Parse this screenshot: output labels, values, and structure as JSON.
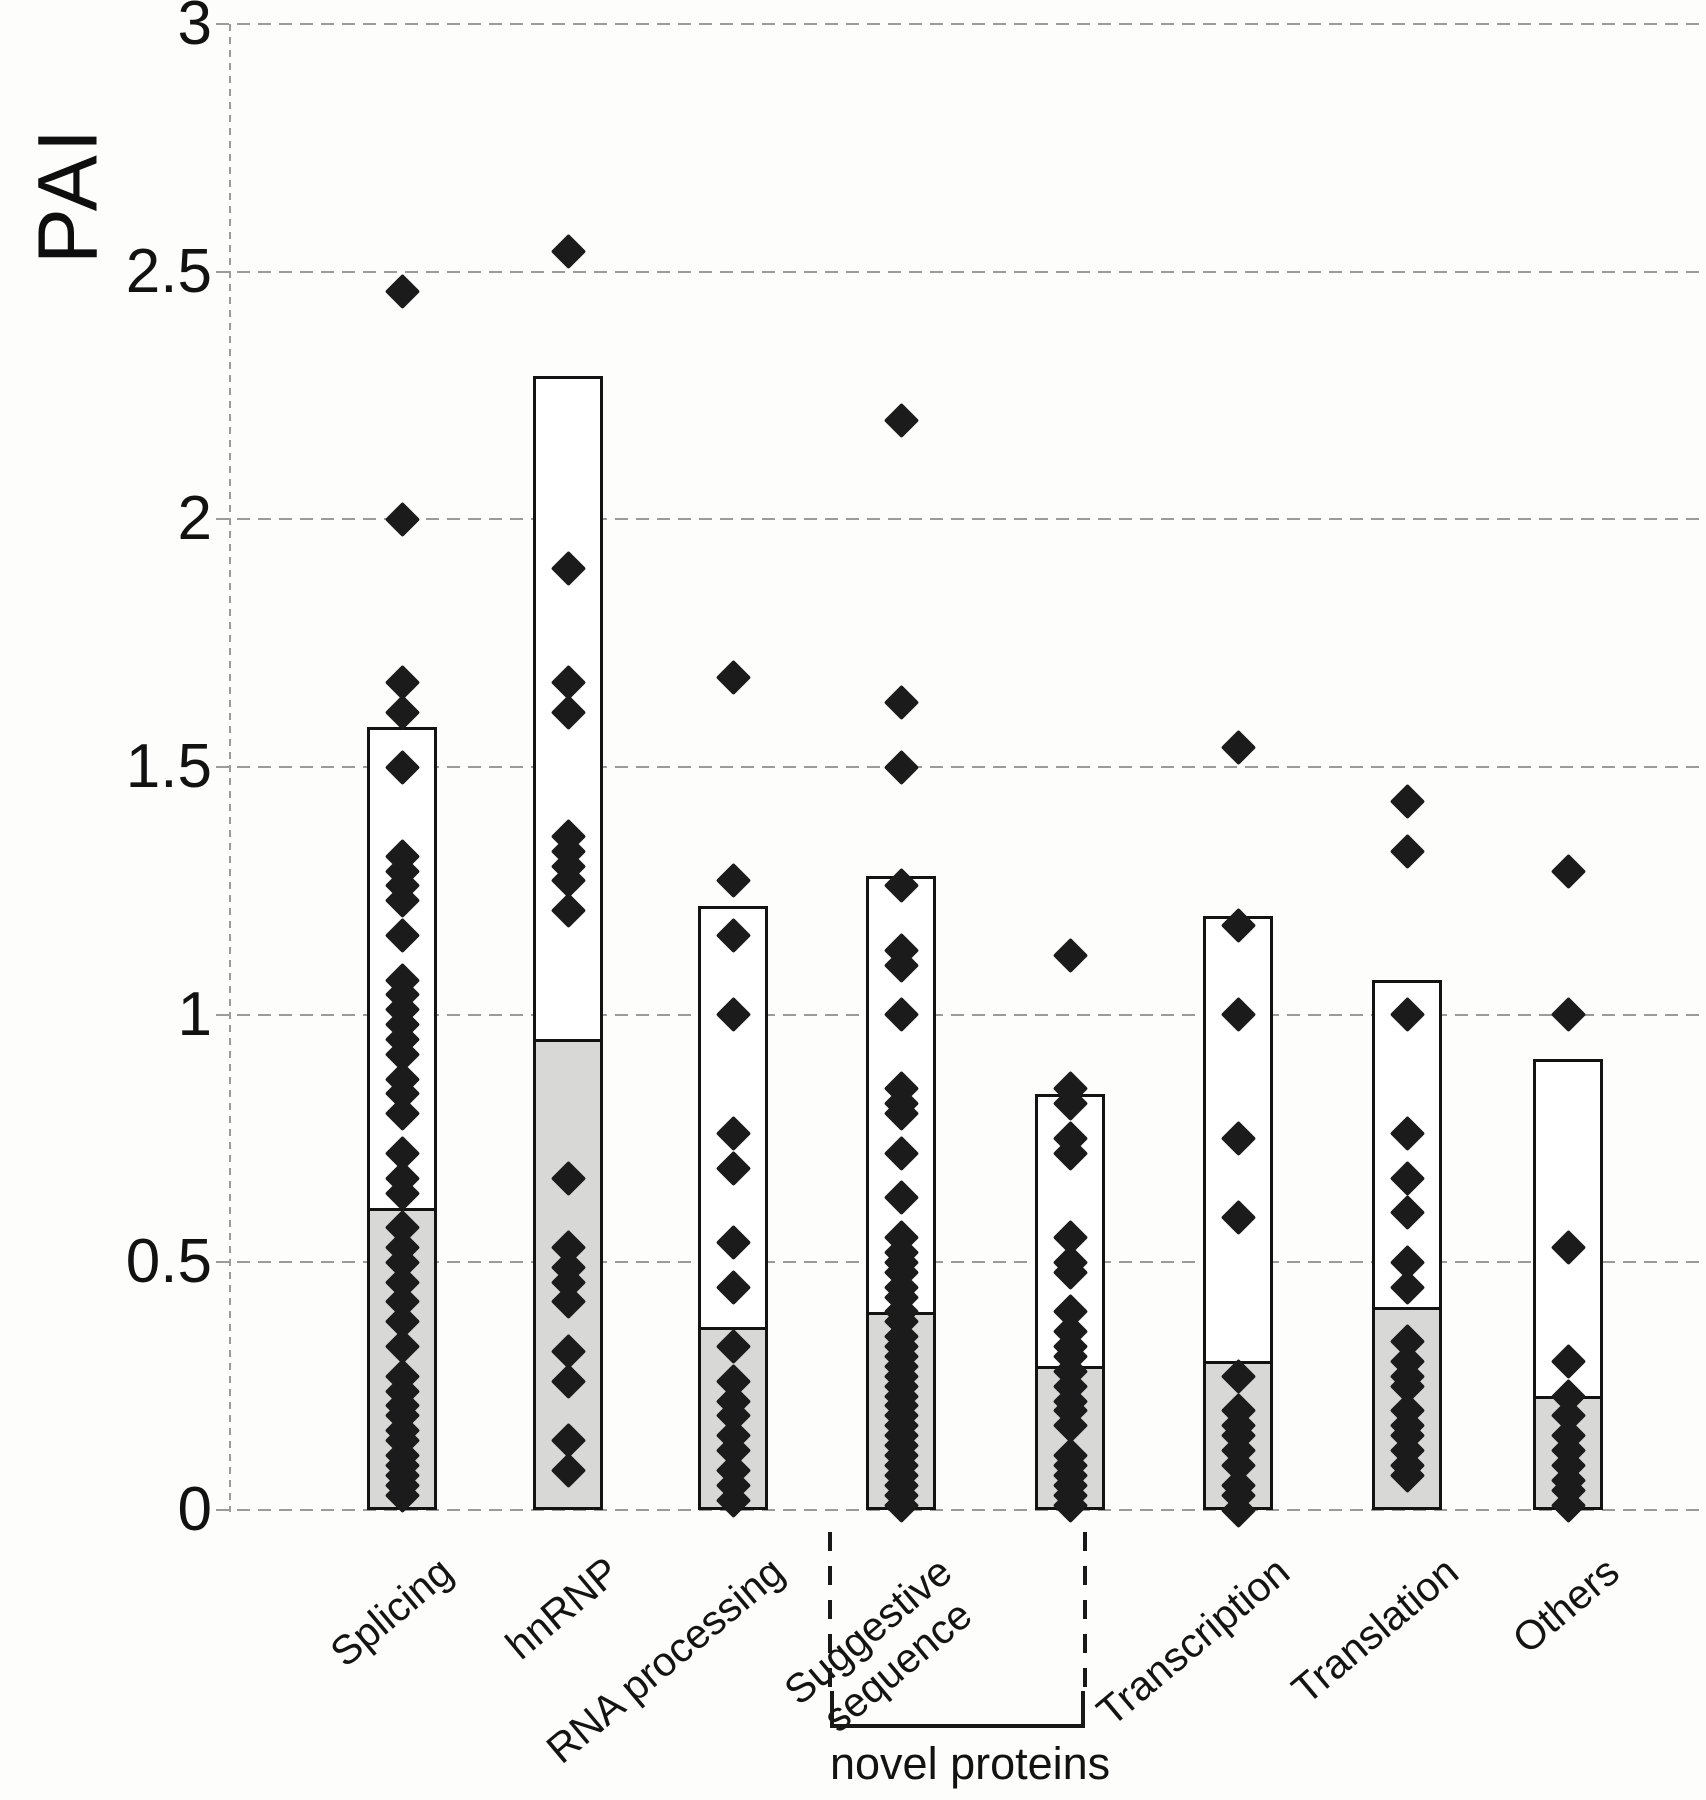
{
  "figure": {
    "y_axis_title": "PAI",
    "bracket_label": "novel proteins"
  },
  "colors": {
    "diamond": "#1b1b1b",
    "bar_upper_fill": "#ffffff",
    "bar_lower_fill": "#d8d8d6",
    "bar_border": "#131313",
    "gridline": "#9b9b9b"
  },
  "chart_data": {
    "type": "scatter",
    "marker": "diamond",
    "title": "",
    "xlabel": "",
    "ylabel": "PAI",
    "ylim": [
      0,
      3
    ],
    "yticks": [
      0,
      0.5,
      1,
      1.5,
      2,
      2.5,
      3
    ],
    "ytick_labels": [
      "0",
      "0.5",
      "1",
      "1.5",
      "2",
      "2.5",
      "3"
    ],
    "grid": "horizontal-dashed",
    "bar_meaning": "white segment top and gray segment top per category",
    "categories": [
      {
        "label": "Splicing",
        "bar_top": 1.58,
        "gray_top": 0.61,
        "points": [
          2.46,
          2.0,
          1.67,
          1.61,
          1.5,
          1.32,
          1.29,
          1.26,
          1.23,
          1.16,
          1.07,
          1.04,
          1.01,
          0.98,
          0.95,
          0.92,
          0.87,
          0.84,
          0.8,
          0.72,
          0.67,
          0.64,
          0.57,
          0.53,
          0.5,
          0.46,
          0.42,
          0.38,
          0.33,
          0.27,
          0.24,
          0.21,
          0.19,
          0.16,
          0.14,
          0.11,
          0.09,
          0.07,
          0.05,
          0.03
        ]
      },
      {
        "label": "hnRNP",
        "bar_top": 2.29,
        "gray_top": 0.95,
        "points": [
          2.54,
          1.9,
          1.67,
          1.61,
          1.36,
          1.33,
          1.3,
          1.27,
          1.21,
          0.67,
          0.53,
          0.49,
          0.46,
          0.42,
          0.32,
          0.26,
          0.14,
          0.08
        ]
      },
      {
        "label": "RNA processing",
        "bar_top": 1.22,
        "gray_top": 0.37,
        "points": [
          1.68,
          1.27,
          1.16,
          1.0,
          0.76,
          0.69,
          0.54,
          0.45,
          0.33,
          0.26,
          0.22,
          0.19,
          0.15,
          0.12,
          0.08,
          0.05,
          0.02
        ]
      },
      {
        "label": "Suggestive\nsequence",
        "bar_top": 1.28,
        "gray_top": 0.4,
        "points": [
          2.2,
          1.63,
          1.5,
          1.26,
          1.13,
          1.1,
          1.0,
          0.85,
          0.82,
          0.8,
          0.72,
          0.63,
          0.55,
          0.52,
          0.5,
          0.48,
          0.45,
          0.43,
          0.4,
          0.38,
          0.35,
          0.33,
          0.31,
          0.29,
          0.27,
          0.25,
          0.23,
          0.21,
          0.19,
          0.17,
          0.15,
          0.13,
          0.11,
          0.09,
          0.07,
          0.05,
          0.03,
          0.01
        ]
      },
      {
        "label": "",
        "bar_top": 0.84,
        "gray_top": 0.29,
        "points": [
          1.12,
          0.85,
          0.82,
          0.75,
          0.72,
          0.55,
          0.5,
          0.48,
          0.4,
          0.36,
          0.33,
          0.31,
          0.28,
          0.25,
          0.22,
          0.2,
          0.17,
          0.11,
          0.09,
          0.07,
          0.05,
          0.03,
          0.01
        ]
      },
      {
        "label": "Transcription",
        "bar_top": 1.2,
        "gray_top": 0.3,
        "points": [
          1.54,
          1.18,
          1.0,
          0.75,
          0.59,
          0.27,
          0.2,
          0.17,
          0.15,
          0.12,
          0.09,
          0.05,
          0.03,
          0.0
        ]
      },
      {
        "label": "Translation",
        "bar_top": 1.07,
        "gray_top": 0.41,
        "points": [
          1.43,
          1.33,
          1.0,
          0.76,
          0.67,
          0.6,
          0.5,
          0.45,
          0.34,
          0.3,
          0.27,
          0.25,
          0.2,
          0.17,
          0.15,
          0.12,
          0.09,
          0.07
        ]
      },
      {
        "label": "Others",
        "bar_top": 0.91,
        "gray_top": 0.23,
        "points": [
          1.29,
          1.0,
          0.53,
          0.3,
          0.23,
          0.19,
          0.15,
          0.12,
          0.09,
          0.06,
          0.04,
          0.01
        ]
      }
    ],
    "bracket": {
      "label": "novel proteins",
      "from_index": 3,
      "to_index": 4
    },
    "legend": null
  }
}
